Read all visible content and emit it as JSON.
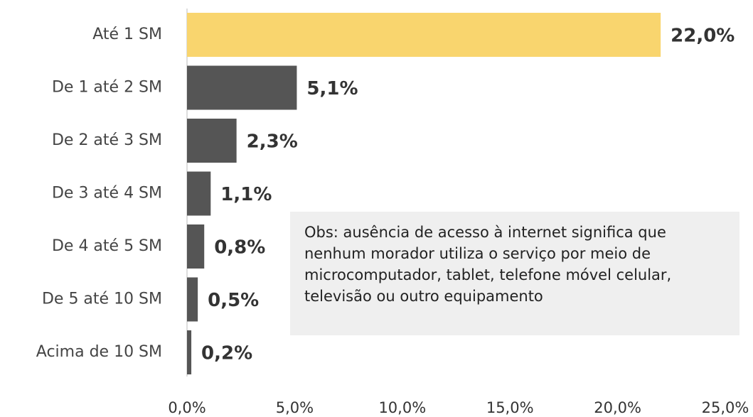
{
  "chart_data": {
    "type": "barh",
    "categories": [
      "Até 1 SM",
      "De 1 até 2 SM",
      "De 2 até 3 SM",
      "De 3 até 4 SM",
      "De 4 até 5 SM",
      "De 5 até 10 SM",
      "Acima de 10 SM"
    ],
    "values": [
      22.0,
      5.1,
      2.3,
      1.1,
      0.8,
      0.5,
      0.2
    ],
    "value_labels": [
      "22,0%",
      "5,1%",
      "2,3%",
      "1,1%",
      "0,8%",
      "0,5%",
      "0,2%"
    ],
    "colors": [
      "#f9d56e",
      "#555555",
      "#555555",
      "#555555",
      "#555555",
      "#555555",
      "#555555"
    ],
    "xlim": [
      0,
      25
    ],
    "xticks": [
      {
        "value": 0,
        "label": "0,0%"
      },
      {
        "value": 5,
        "label": "5,0%"
      },
      {
        "value": 10,
        "label": "10,0%"
      },
      {
        "value": 15,
        "label": "15,0%"
      },
      {
        "value": 20,
        "label": "20,0%"
      },
      {
        "value": 25,
        "label": "25,0%"
      }
    ],
    "annotation": "Obs: ausência de acesso à internet significa que nenhum morador utiliza o serviço por meio de microcomputador, tablet, telefone móvel celular, televisão ou outro equipamento"
  }
}
